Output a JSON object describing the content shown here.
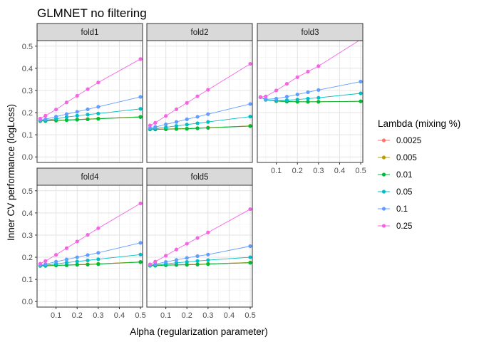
{
  "chart_data": {
    "type": "line",
    "facet": "fold",
    "title": "GLMNET no filtering",
    "xlabel": "Alpha (regularization parameter)",
    "ylabel": "Inner CV performance (logLoss)",
    "legend_title": "Lambda (mixing %)",
    "legend_position": "right",
    "grid": true,
    "xlim": [
      0.01,
      0.51
    ],
    "ylim": [
      -0.025,
      0.525
    ],
    "x_ticks": [
      0.1,
      0.2,
      0.3,
      0.4,
      0.5
    ],
    "x_tick_labels": [
      "0.1",
      "0.2",
      "0.3",
      "0.4",
      "0.5"
    ],
    "y_ticks": [
      0.0,
      0.1,
      0.2,
      0.3,
      0.4,
      0.5
    ],
    "y_tick_labels": [
      "0.0",
      "0.1",
      "0.2",
      "0.3",
      "0.4",
      "0.5"
    ],
    "x": [
      0.025,
      0.05,
      0.1,
      0.15,
      0.2,
      0.25,
      0.3,
      0.5
    ],
    "series_names": [
      "0.0025",
      "0.005",
      "0.01",
      "0.05",
      "0.1",
      "0.25"
    ],
    "series_colors": [
      "#F8766D",
      "#B79F00",
      "#00BA38",
      "#00BFC4",
      "#619CFF",
      "#F564E3"
    ],
    "panels": [
      {
        "label": "fold1",
        "series": [
          {
            "name": "0.0025",
            "values": [
              0.162,
              0.163,
              0.165,
              0.167,
              0.169,
              0.171,
              0.173,
              0.181
            ]
          },
          {
            "name": "0.005",
            "values": [
              0.162,
              0.163,
              0.165,
              0.167,
              0.169,
              0.171,
              0.173,
              0.181
            ]
          },
          {
            "name": "0.01",
            "values": [
              0.162,
              0.162,
              0.164,
              0.166,
              0.168,
              0.17,
              0.172,
              0.18
            ]
          },
          {
            "name": "0.05",
            "values": [
              0.165,
              0.166,
              0.172,
              0.18,
              0.186,
              0.191,
              0.196,
              0.217
            ]
          },
          {
            "name": "0.1",
            "values": [
              0.166,
              0.17,
              0.182,
              0.193,
              0.204,
              0.215,
              0.226,
              0.271
            ]
          },
          {
            "name": "0.25",
            "values": [
              0.173,
              0.186,
              0.214,
              0.246,
              0.276,
              0.306,
              0.336,
              0.442
            ]
          }
        ]
      },
      {
        "label": "fold2",
        "series": [
          {
            "name": "0.0025",
            "values": [
              0.125,
              0.125,
              0.126,
              0.127,
              0.128,
              0.13,
              0.132,
              0.14
            ]
          },
          {
            "name": "0.005",
            "values": [
              0.125,
              0.125,
              0.126,
              0.127,
              0.128,
              0.13,
              0.132,
              0.14
            ]
          },
          {
            "name": "0.01",
            "values": [
              0.124,
              0.124,
              0.125,
              0.126,
              0.127,
              0.129,
              0.131,
              0.139
            ]
          },
          {
            "name": "0.05",
            "values": [
              0.127,
              0.128,
              0.134,
              0.14,
              0.146,
              0.152,
              0.158,
              0.182
            ]
          },
          {
            "name": "0.1",
            "values": [
              0.13,
              0.135,
              0.147,
              0.158,
              0.17,
              0.181,
              0.193,
              0.239
            ]
          },
          {
            "name": "0.25",
            "values": [
              0.142,
              0.154,
              0.185,
              0.215,
              0.244,
              0.274,
              0.303,
              0.42
            ]
          }
        ]
      },
      {
        "label": "fold3",
        "series": [
          {
            "name": "0.0025",
            "values": [
              0.27,
              0.258,
              0.252,
              0.25,
              0.249,
              0.249,
              0.249,
              0.251
            ]
          },
          {
            "name": "0.005",
            "values": [
              0.27,
              0.258,
              0.252,
              0.25,
              0.249,
              0.249,
              0.249,
              0.251
            ]
          },
          {
            "name": "0.01",
            "values": [
              0.27,
              0.258,
              0.252,
              0.25,
              0.249,
              0.249,
              0.249,
              0.251
            ]
          },
          {
            "name": "0.05",
            "values": [
              0.27,
              0.258,
              0.254,
              0.256,
              0.259,
              0.263,
              0.267,
              0.287
            ]
          },
          {
            "name": "0.1",
            "values": [
              0.27,
              0.26,
              0.263,
              0.272,
              0.282,
              0.292,
              0.302,
              0.34
            ]
          },
          {
            "name": "0.25",
            "values": [
              0.27,
              0.273,
              0.3,
              0.33,
              0.36,
              0.385,
              0.41,
              0.53
            ]
          }
        ]
      },
      {
        "label": "fold4",
        "series": [
          {
            "name": "0.0025",
            "values": [
              0.162,
              0.162,
              0.164,
              0.165,
              0.167,
              0.168,
              0.17,
              0.179
            ]
          },
          {
            "name": "0.005",
            "values": [
              0.162,
              0.162,
              0.164,
              0.165,
              0.167,
              0.168,
              0.17,
              0.179
            ]
          },
          {
            "name": "0.01",
            "values": [
              0.161,
              0.161,
              0.163,
              0.164,
              0.166,
              0.167,
              0.169,
              0.178
            ]
          },
          {
            "name": "0.05",
            "values": [
              0.163,
              0.164,
              0.17,
              0.176,
              0.181,
              0.186,
              0.191,
              0.212
            ]
          },
          {
            "name": "0.1",
            "values": [
              0.165,
              0.169,
              0.18,
              0.19,
              0.2,
              0.21,
              0.22,
              0.265
            ]
          },
          {
            "name": "0.25",
            "values": [
              0.171,
              0.183,
              0.211,
              0.241,
              0.271,
              0.301,
              0.331,
              0.443
            ]
          }
        ]
      },
      {
        "label": "fold5",
        "series": [
          {
            "name": "0.0025",
            "values": [
              0.162,
              0.163,
              0.165,
              0.166,
              0.167,
              0.168,
              0.17,
              0.176
            ]
          },
          {
            "name": "0.005",
            "values": [
              0.162,
              0.163,
              0.165,
              0.166,
              0.167,
              0.168,
              0.17,
              0.176
            ]
          },
          {
            "name": "0.01",
            "values": [
              0.162,
              0.162,
              0.164,
              0.165,
              0.166,
              0.167,
              0.169,
              0.175
            ]
          },
          {
            "name": "0.05",
            "values": [
              0.163,
              0.165,
              0.17,
              0.175,
              0.179,
              0.183,
              0.187,
              0.2
            ]
          },
          {
            "name": "0.1",
            "values": [
              0.165,
              0.169,
              0.179,
              0.188,
              0.197,
              0.205,
              0.212,
              0.25
            ]
          },
          {
            "name": "0.25",
            "values": [
              0.168,
              0.18,
              0.207,
              0.235,
              0.261,
              0.287,
              0.312,
              0.417
            ]
          }
        ]
      }
    ]
  }
}
